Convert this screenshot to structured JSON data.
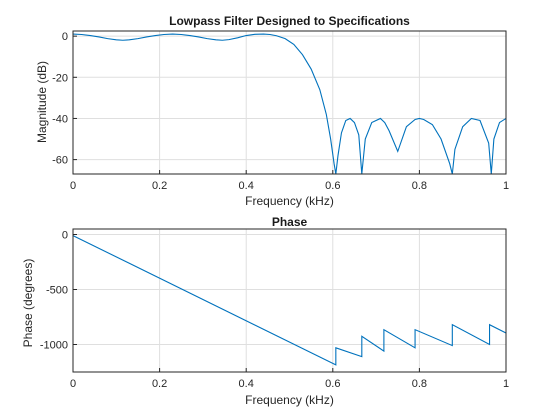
{
  "chart_data": [
    {
      "type": "line",
      "title": "Lowpass Filter Designed to Specifications",
      "xlabel": "Frequency (kHz)",
      "ylabel": "Magnitude (dB)",
      "xlim": [
        0,
        1
      ],
      "ylim": [
        -67,
        2.5
      ],
      "xticks": [
        0,
        0.2,
        0.4,
        0.6,
        0.8,
        1
      ],
      "xtick_labels": [
        "0",
        "0.2",
        "0.4",
        "0.6",
        "0.8",
        "1"
      ],
      "yticks": [
        0,
        -20,
        -40,
        -60
      ],
      "ytick_labels": [
        "0",
        "-20",
        "-40",
        "-60"
      ],
      "grid": true,
      "color": "#0072bd",
      "series": [
        {
          "x": [
            0,
            0.02,
            0.04,
            0.06,
            0.08,
            0.1,
            0.115,
            0.13,
            0.15,
            0.17,
            0.19,
            0.21,
            0.23,
            0.25,
            0.27,
            0.29,
            0.31,
            0.33,
            0.345,
            0.36,
            0.38,
            0.4,
            0.42,
            0.44,
            0.455,
            0.47,
            0.49,
            0.51,
            0.53,
            0.55,
            0.57,
            0.585,
            0.595,
            0.603,
            0.607,
            0.612,
            0.62,
            0.63,
            0.64,
            0.65,
            0.66,
            0.667,
            0.675,
            0.69,
            0.71,
            0.72,
            0.73,
            0.75,
            0.77,
            0.79,
            0.8,
            0.81,
            0.83,
            0.85,
            0.87,
            0.876,
            0.882,
            0.9,
            0.92,
            0.94,
            0.96,
            0.966,
            0.972,
            0.985,
            1.0
          ],
          "y": [
            1,
            0.8,
            0.3,
            -0.4,
            -1.2,
            -1.8,
            -2,
            -1.8,
            -1.2,
            -0.4,
            0.3,
            0.8,
            1,
            0.8,
            0.3,
            -0.4,
            -1.2,
            -1.8,
            -2,
            -1.7,
            -0.8,
            0.3,
            0.9,
            1,
            0.8,
            0.2,
            -1.2,
            -4,
            -9,
            -16,
            -26,
            -38,
            -50,
            -62,
            -67,
            -58,
            -47,
            -41,
            -40,
            -42,
            -48,
            -67,
            -50,
            -42,
            -40,
            -42,
            -46,
            -56,
            -44,
            -40.5,
            -40,
            -40.5,
            -43,
            -50,
            -62,
            -67,
            -55,
            -44,
            -40,
            -41,
            -52,
            -67,
            -50,
            -42,
            -40
          ]
        }
      ]
    },
    {
      "type": "line",
      "title": "Phase",
      "xlabel": "Frequency (kHz)",
      "ylabel": "Phase (degrees)",
      "xlim": [
        0,
        1
      ],
      "ylim": [
        -1250,
        50
      ],
      "xticks": [
        0,
        0.2,
        0.4,
        0.6,
        0.8,
        1
      ],
      "xtick_labels": [
        "0",
        "0.2",
        "0.4",
        "0.6",
        "0.8",
        "1"
      ],
      "yticks": [
        0,
        -500,
        -1000
      ],
      "ytick_labels": [
        "0",
        "-500",
        "-1000"
      ],
      "grid": true,
      "color": "#0072bd",
      "series": [
        {
          "x": [
            0,
            0.607,
            0.607,
            0.667,
            0.667,
            0.718,
            0.718,
            0.79,
            0.79,
            0.876,
            0.876,
            0.962,
            0.962,
            1.0
          ],
          "y": [
            -10,
            -1185,
            -1030,
            -1110,
            -925,
            -1060,
            -865,
            -1030,
            -865,
            -1010,
            -820,
            -1000,
            -820,
            -895
          ]
        }
      ]
    }
  ]
}
